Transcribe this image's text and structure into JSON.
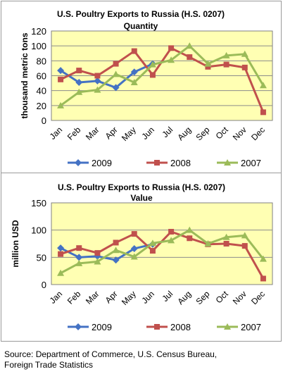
{
  "chart_data": [
    {
      "type": "line",
      "title": "U.S. Poultry Exports to Russia (H.S. 0207)",
      "subtitle": "Quantity",
      "xlabel": "",
      "ylabel": "thousand metric tons",
      "categories": [
        "Jan",
        "Feb",
        "Mar",
        "Apr",
        "May",
        "Jun",
        "Jul",
        "Aug",
        "Sep",
        "Oct",
        "Nov",
        "Dec"
      ],
      "ylim": [
        0,
        120
      ],
      "yticks": [
        "0",
        "20",
        "40",
        "60",
        "80",
        "100",
        "120"
      ],
      "grid": true,
      "legend": "bottom",
      "series": [
        {
          "name": "2009",
          "color": "#4472C4",
          "marker": "diamond",
          "values": [
            67,
            51,
            53,
            44,
            65,
            76,
            null,
            null,
            null,
            null,
            null,
            null
          ]
        },
        {
          "name": "2008",
          "color": "#C0504D",
          "marker": "square",
          "values": [
            55,
            67,
            60,
            76,
            93,
            61,
            97,
            85,
            72,
            75,
            71,
            11
          ]
        },
        {
          "name": "2007",
          "color": "#9BBB59",
          "marker": "triangle",
          "values": [
            20,
            38,
            41,
            62,
            51,
            75,
            81,
            100,
            76,
            87,
            89,
            47
          ]
        }
      ]
    },
    {
      "type": "line",
      "title": "U.S. Poultry Exports to Russia (H.S. 0207)",
      "subtitle": "Value",
      "xlabel": "",
      "ylabel": "million USD",
      "categories": [
        "Jan",
        "Feb",
        "Mar",
        "Apr",
        "May",
        "Jun",
        "Jul",
        "Aug",
        "Sep",
        "Oct",
        "Nov",
        "Dec"
      ],
      "ylim": [
        0,
        150
      ],
      "yticks": [
        "0",
        "50",
        "100",
        "150"
      ],
      "grid": true,
      "legend": "bottom",
      "series": [
        {
          "name": "2009",
          "color": "#4472C4",
          "marker": "diamond",
          "values": [
            67,
            50,
            52,
            45,
            66,
            74,
            null,
            null,
            null,
            null,
            null,
            null
          ]
        },
        {
          "name": "2008",
          "color": "#C0504D",
          "marker": "square",
          "values": [
            56,
            67,
            58,
            77,
            93,
            62,
            97,
            85,
            74,
            75,
            71,
            11
          ]
        },
        {
          "name": "2007",
          "color": "#9BBB59",
          "marker": "triangle",
          "values": [
            21,
            39,
            42,
            63,
            51,
            76,
            81,
            100,
            75,
            87,
            90,
            47
          ]
        }
      ]
    }
  ],
  "colors": {
    "plot_bg": "#FFFFB3",
    "grid": "#8C8C8C"
  },
  "source": {
    "line1": "Source:  Department of Commerce, U.S. Census Bureau,",
    "line2": "Foreign Trade Statistics"
  }
}
